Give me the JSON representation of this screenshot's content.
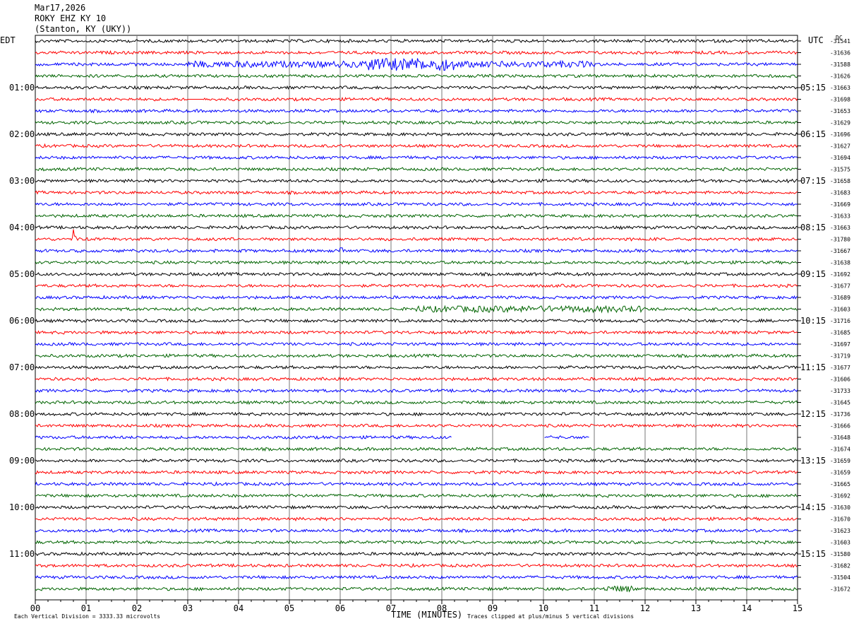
{
  "header": {
    "date": "Mar17,2026",
    "station": "ROKY EHZ KY 10",
    "location": "(Stanton, KY (UKY))"
  },
  "left_timezone": "EDT",
  "right_timezone": "UTC",
  "dc_label": "DC",
  "footer": {
    "scale_note": "Each Vertical Division = 3333.33 microvolts",
    "xlabel": "TIME (MINUTES)",
    "clip_note": "Traces clipped at plus/minus 5 vertical divisions"
  },
  "trace_colors": [
    "#000000",
    "#ff0000",
    "#0000ff",
    "#006400"
  ],
  "chart_data": {
    "type": "line",
    "title": "ROKY EHZ KY 10",
    "xlabel": "TIME (MINUTES)",
    "ylabel": "",
    "xlim": [
      0,
      15
    ],
    "x_ticks": [
      "00",
      "01",
      "02",
      "03",
      "04",
      "05",
      "06",
      "07",
      "08",
      "09",
      "10",
      "11",
      "12",
      "13",
      "14",
      "15"
    ],
    "left_hour_labels": [
      "01:00",
      "02:00",
      "03:00",
      "04:00",
      "05:00",
      "06:00",
      "07:00",
      "08:00",
      "09:00",
      "10:00",
      "11:00"
    ],
    "right_hour_labels": [
      "05:15",
      "06:15",
      "07:15",
      "08:15",
      "09:15",
      "10:15",
      "11:15",
      "12:15",
      "13:15",
      "14:15",
      "15:15"
    ],
    "dc_offsets": [
      "-31541",
      "-31636",
      "-31588",
      "-31626",
      "-31663",
      "-31698",
      "-31653",
      "-31629",
      "-31696",
      "-31627",
      "-31694",
      "-31575",
      "-31658",
      "-31683",
      "-31669",
      "-31633",
      "-31663",
      "-31780",
      "-31667",
      "-31638",
      "-31692",
      "-31677",
      "-31689",
      "-31603",
      "-31716",
      "-31685",
      "-31697",
      "-31719",
      "-31677",
      "-31606",
      "-31733",
      "-31645",
      "-31736",
      "-31666",
      "-31648",
      "-31674",
      "-31659",
      "-31659",
      "-31665",
      "-31692",
      "-31630",
      "-31670",
      "-31623",
      "-31603",
      "-31580",
      "-31682",
      "-31504",
      "-31672"
    ],
    "rows": 48,
    "events": [
      {
        "row": 2,
        "start_min": 3.0,
        "end_min": 11.0,
        "level": "moderate"
      },
      {
        "row": 2,
        "start_min": 6.5,
        "end_min": 8.3,
        "level": "strong"
      },
      {
        "row": 5,
        "start_min": 3.0,
        "end_min": 3.3,
        "level": "flat_gap"
      },
      {
        "row": 17,
        "start_min": 0.75,
        "end_min": 0.8,
        "level": "spike"
      },
      {
        "row": 18,
        "start_min": 6.0,
        "end_min": 6.05,
        "level": "spike"
      },
      {
        "row": 23,
        "start_min": 7.5,
        "end_min": 12.0,
        "level": "moderate"
      },
      {
        "row": 34,
        "start_min": 8.2,
        "end_min": 10.0,
        "level": "gap"
      },
      {
        "row": 34,
        "start_min": 10.9,
        "end_min": 15.0,
        "level": "gap"
      },
      {
        "row": 47,
        "start_min": 11.2,
        "end_min": 11.8,
        "level": "moderate"
      }
    ]
  }
}
